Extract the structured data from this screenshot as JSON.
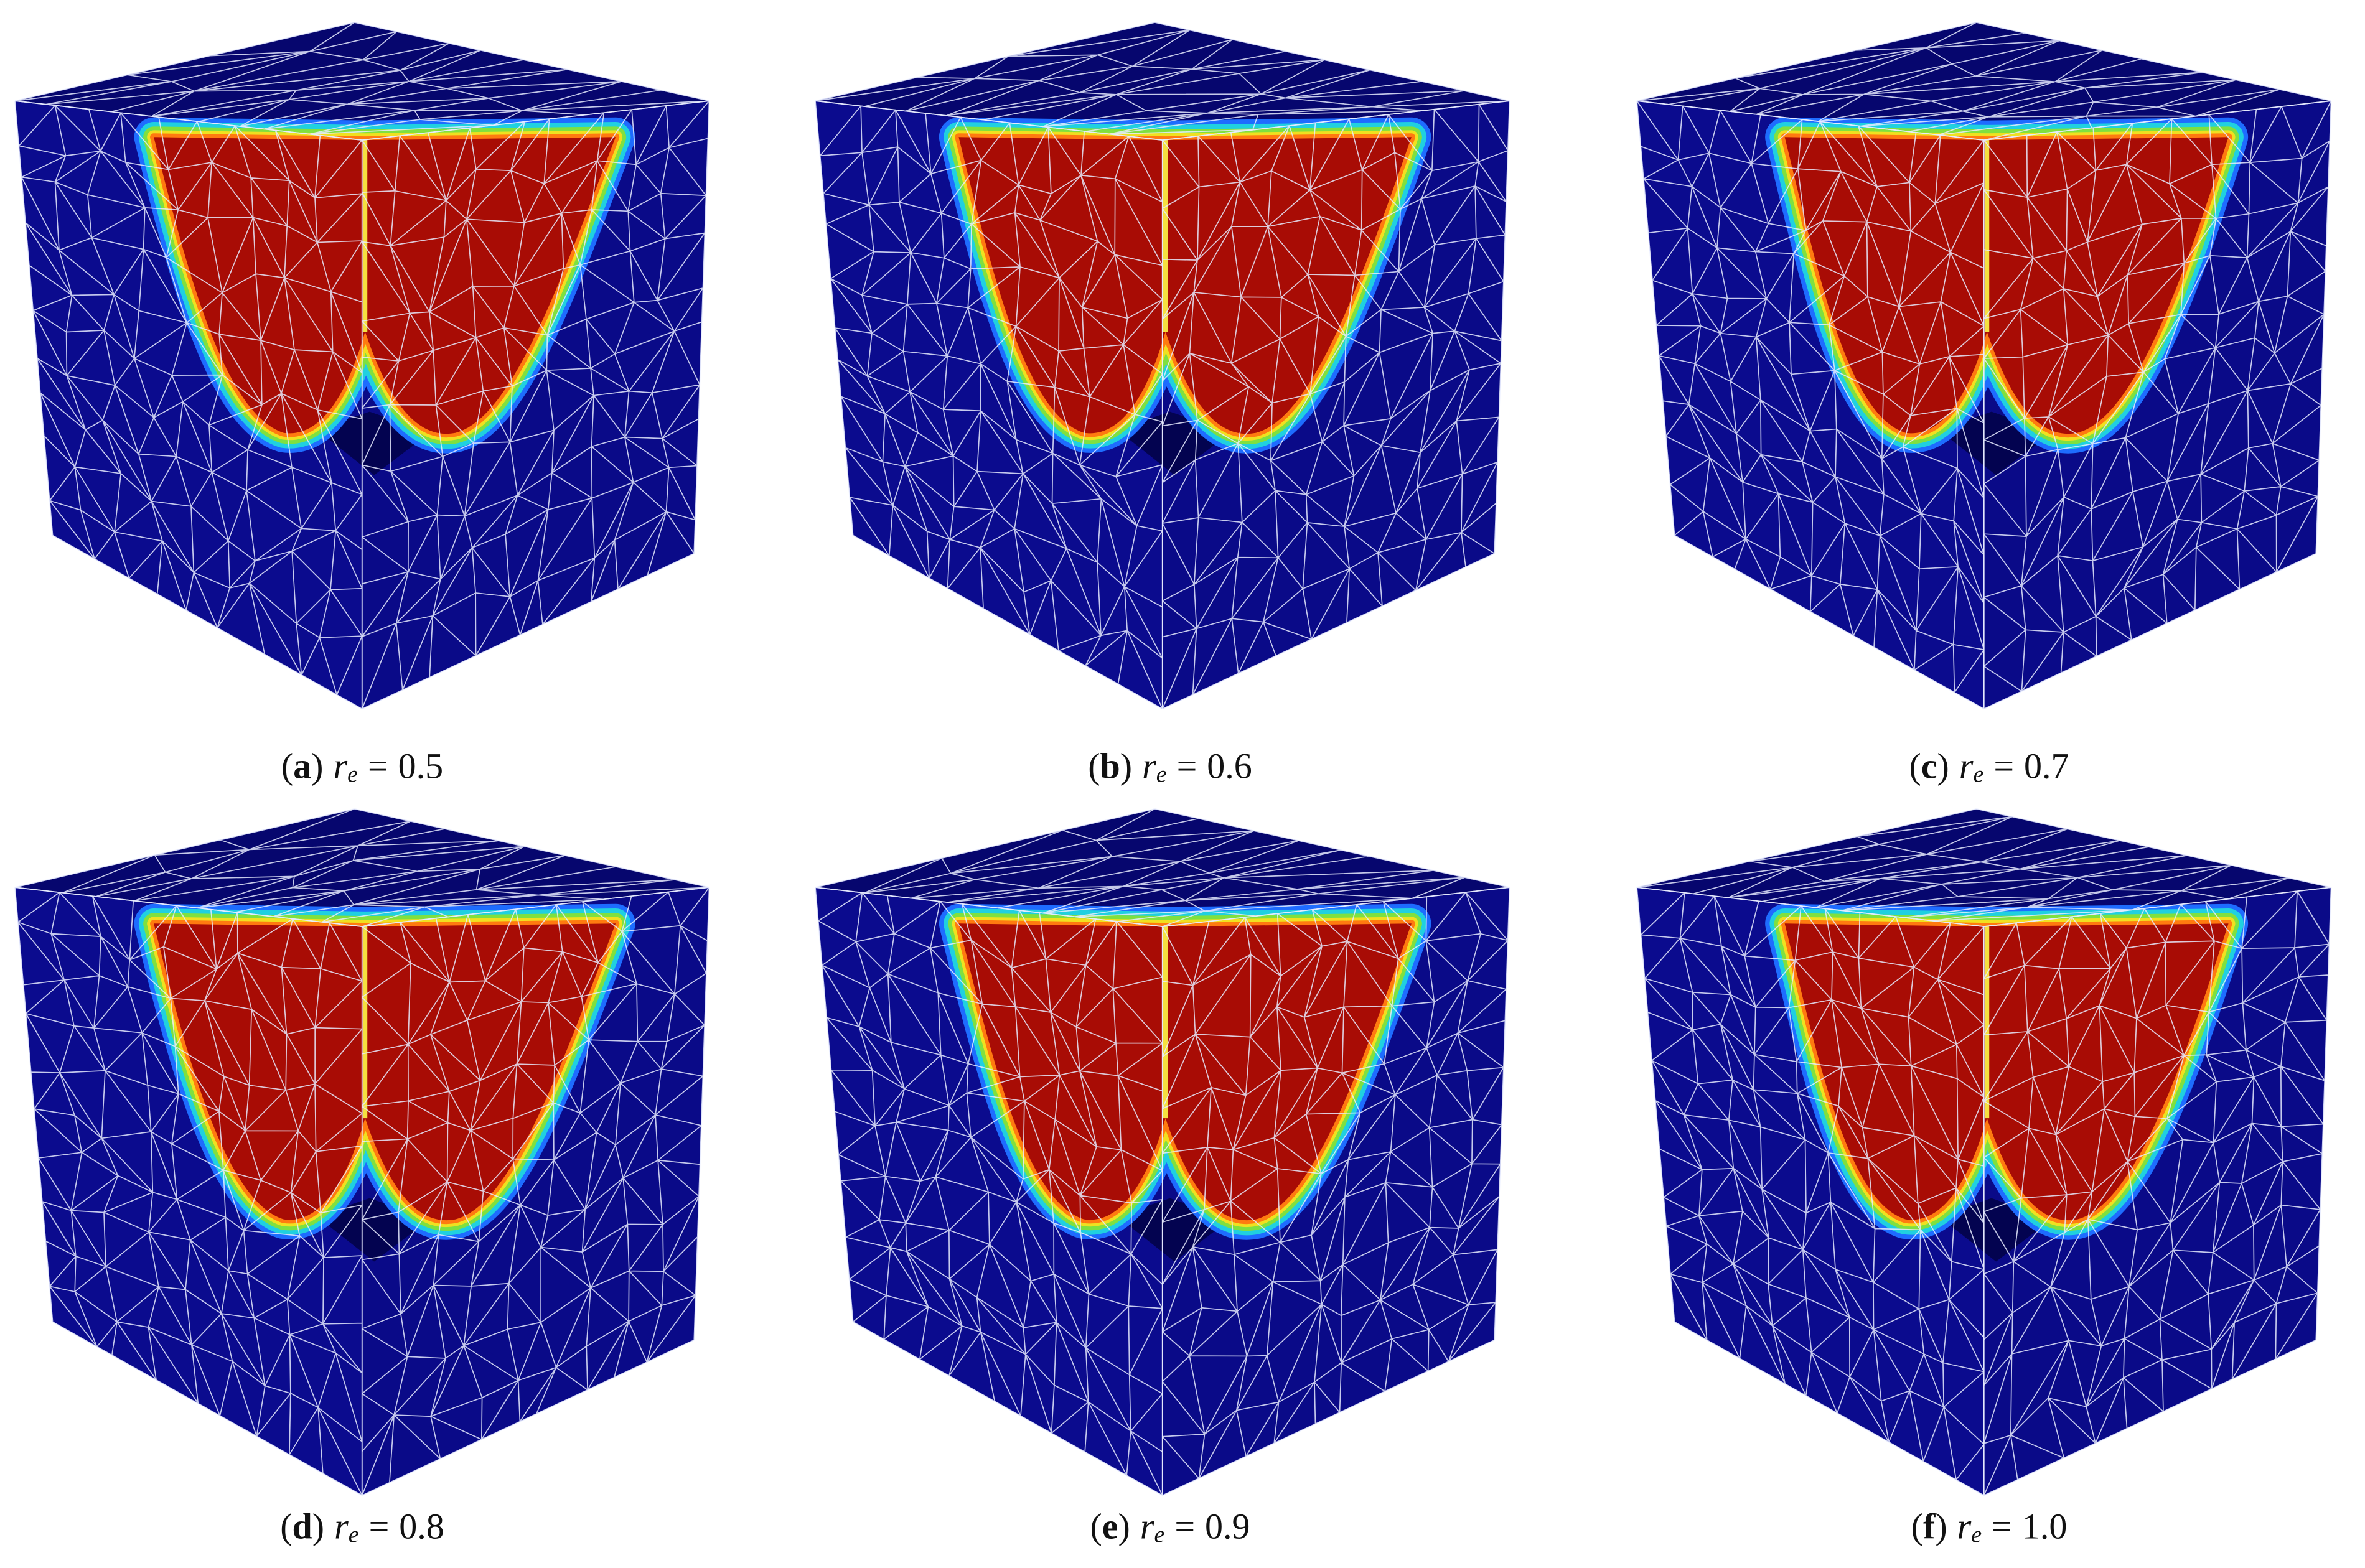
{
  "panels": [
    {
      "open": "(",
      "tag": "a",
      "close": ")",
      "variable": "r",
      "subscript": "e",
      "equals": "=",
      "value": "0.5"
    },
    {
      "open": "(",
      "tag": "b",
      "close": ")",
      "variable": "r",
      "subscript": "e",
      "equals": "=",
      "value": "0.6"
    },
    {
      "open": "(",
      "tag": "c",
      "close": ")",
      "variable": "r",
      "subscript": "e",
      "equals": "=",
      "value": "0.7"
    },
    {
      "open": "(",
      "tag": "d",
      "close": ")",
      "variable": "r",
      "subscript": "e",
      "equals": "=",
      "value": "0.8"
    },
    {
      "open": "(",
      "tag": "e",
      "close": ")",
      "variable": "r",
      "subscript": "e",
      "equals": "=",
      "value": "0.9"
    },
    {
      "open": "(",
      "tag": "f",
      "close": ")",
      "variable": "r",
      "subscript": "e",
      "equals": "=",
      "value": "1.0"
    }
  ]
}
